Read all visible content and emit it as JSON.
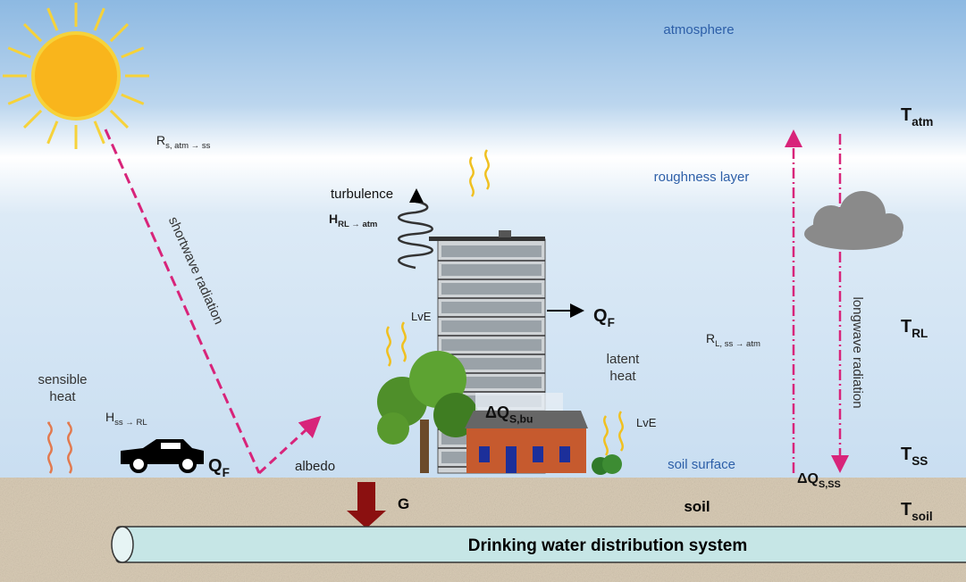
{
  "layers": {
    "atmosphere": "atmosphere",
    "roughness_layer": "roughness layer",
    "soil_surface": "soil surface",
    "soil": "soil"
  },
  "pipe": "Drinking water distribution system",
  "radiation": {
    "shortwave": "shortwave radiation",
    "longwave": "longwave radiation",
    "albedo": "albedo"
  },
  "processes": {
    "turbulence": "turbulence",
    "sensible_heat": [
      "sensible",
      "heat"
    ],
    "latent_heat": [
      "latent",
      "heat"
    ]
  },
  "fluxes": {
    "rs": {
      "main": "R",
      "sub": "s, atm → ss"
    },
    "h_rl": {
      "main": "H",
      "sub": "RL → atm"
    },
    "h_ss": {
      "main": "H",
      "sub": "ss → RL"
    },
    "rl": {
      "main": "R",
      "sub": "L, ss → atm"
    },
    "lve_building": "LvE",
    "lve_house": "LvE",
    "qf_building": {
      "main": "Q",
      "sub": "F"
    },
    "qf_car": {
      "main": "Q",
      "sub": "F"
    },
    "dq_bu": {
      "main": "ΔQ",
      "sub": "S,bu"
    },
    "dq_ss": {
      "main": "ΔQ",
      "sub": "S,SS"
    },
    "g": "G"
  },
  "temperatures": [
    {
      "main": "T",
      "sub": "atm"
    },
    {
      "main": "T",
      "sub": "RL"
    },
    {
      "main": "T",
      "sub": "SS"
    },
    {
      "main": "T",
      "sub": "soil"
    }
  ]
}
